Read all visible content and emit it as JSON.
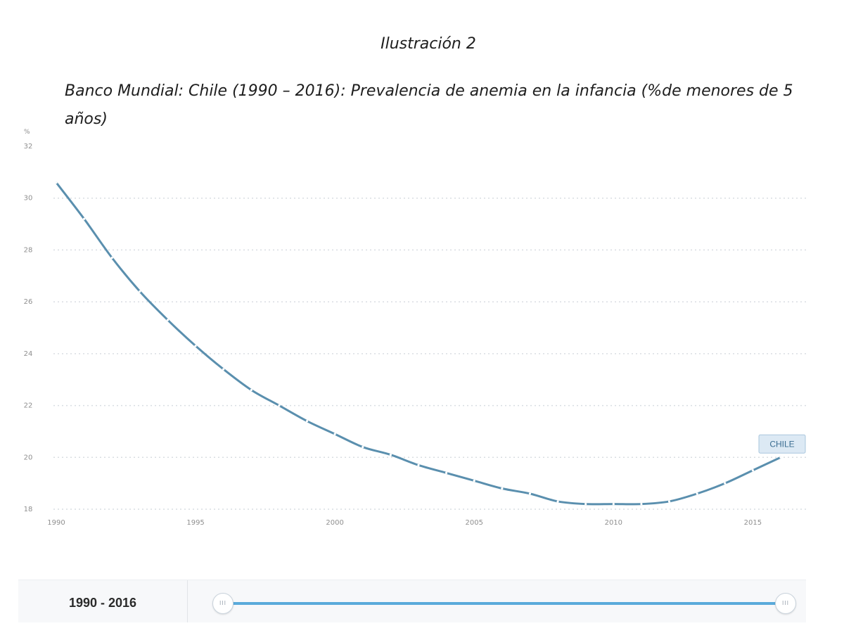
{
  "figure": {
    "label": "Ilustración 2",
    "caption": "Banco Mundial: Chile (1990 – 2016): Prevalencia de anemia en la infancia (%de menores de 5 años)"
  },
  "chart_data": {
    "type": "line",
    "title": "",
    "ylabel": "%",
    "xlabel": "",
    "ylim": [
      18,
      32
    ],
    "xlim": [
      1990,
      2016
    ],
    "yticks": [
      18,
      20,
      22,
      24,
      26,
      28,
      30,
      32
    ],
    "xticks": [
      1990,
      1995,
      2000,
      2005,
      2010,
      2015
    ],
    "grid": true,
    "series": [
      {
        "name": "CHILE",
        "color": "#5a8fae",
        "x": [
          1990,
          1991,
          1992,
          1993,
          1994,
          1995,
          1996,
          1997,
          1998,
          1999,
          2000,
          2001,
          2002,
          2003,
          2004,
          2005,
          2006,
          2007,
          2008,
          2009,
          2010,
          2011,
          2012,
          2013,
          2014,
          2015,
          2016
        ],
        "y": [
          30.6,
          29.2,
          27.7,
          26.4,
          25.3,
          24.3,
          23.4,
          22.6,
          22.0,
          21.4,
          20.9,
          20.4,
          20.1,
          19.7,
          19.4,
          19.1,
          18.8,
          18.6,
          18.3,
          18.2,
          18.2,
          18.2,
          18.3,
          18.6,
          19.0,
          19.5,
          20.0
        ]
      }
    ],
    "end_label": "CHILE"
  },
  "slider": {
    "range_label": "1990 - 2016",
    "start_year": 1990,
    "end_year": 2016,
    "handle_glyph": "III",
    "track_color": "#5aaadb"
  }
}
